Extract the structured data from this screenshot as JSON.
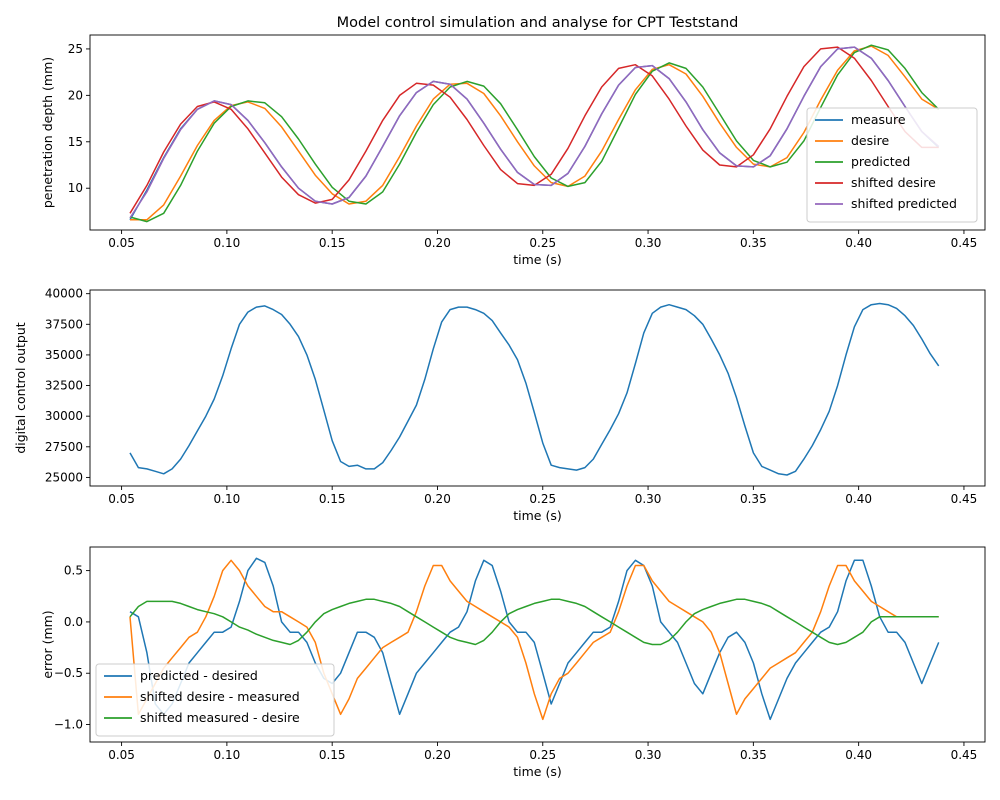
{
  "chart_data": [
    {
      "type": "line",
      "title": "Model control simulation and analyse for CPT Teststand",
      "xlabel": "time (s)",
      "ylabel": "penetration depth (mm)",
      "xlim": [
        0.035,
        0.46
      ],
      "ylim": [
        5.5,
        26.5
      ],
      "xticks": [
        0.05,
        0.1,
        0.15,
        0.2,
        0.25,
        0.3,
        0.35,
        0.4,
        0.45
      ],
      "xtick_labels": [
        "0.05",
        "0.10",
        "0.15",
        "0.20",
        "0.25",
        "0.30",
        "0.35",
        "0.40",
        "0.45"
      ],
      "yticks": [
        10,
        15,
        20,
        25
      ],
      "ytick_labels": [
        "10",
        "15",
        "20",
        "25"
      ],
      "legend_position": "lower-right",
      "x": [
        0.054,
        0.062,
        0.07,
        0.078,
        0.086,
        0.094,
        0.102,
        0.11,
        0.118,
        0.126,
        0.134,
        0.142,
        0.15,
        0.158,
        0.166,
        0.174,
        0.182,
        0.19,
        0.198,
        0.206,
        0.214,
        0.222,
        0.23,
        0.238,
        0.246,
        0.254,
        0.262,
        0.27,
        0.278,
        0.286,
        0.294,
        0.302,
        0.31,
        0.318,
        0.326,
        0.334,
        0.342,
        0.35,
        0.358,
        0.366,
        0.374,
        0.382,
        0.39,
        0.398,
        0.406,
        0.414,
        0.422,
        0.43,
        0.438
      ],
      "series": [
        {
          "name": "measure",
          "color": "#1f77b4",
          "values": [
            6.6,
            9.8,
            13.3,
            16.4,
            18.5,
            19.4,
            19.0,
            17.3,
            14.9,
            12.3,
            10.0,
            8.6,
            8.3,
            9.0,
            11.3,
            14.5,
            17.8,
            20.3,
            21.5,
            21.2,
            19.6,
            17.0,
            14.2,
            11.7,
            10.4,
            10.3,
            11.6,
            14.5,
            18.0,
            21.1,
            23.0,
            23.2,
            21.8,
            19.3,
            16.3,
            13.8,
            12.4,
            12.3,
            13.5,
            16.4,
            19.9,
            23.1,
            25.0,
            25.2,
            24.0,
            21.6,
            18.8,
            16.1,
            14.4
          ]
        },
        {
          "name": "desire",
          "color": "#ff7f0e",
          "values": [
            6.6,
            6.6,
            8.2,
            11.3,
            14.6,
            17.3,
            18.9,
            19.3,
            18.6,
            16.6,
            14.0,
            11.4,
            9.4,
            8.3,
            8.6,
            10.3,
            13.4,
            16.7,
            19.6,
            21.2,
            21.3,
            20.2,
            17.8,
            15.0,
            12.4,
            10.6,
            10.2,
            11.3,
            14.0,
            17.4,
            20.6,
            22.8,
            23.3,
            22.3,
            19.9,
            17.0,
            14.4,
            12.6,
            12.3,
            13.3,
            16.0,
            19.5,
            22.7,
            24.8,
            25.3,
            24.3,
            22.0,
            19.6,
            18.5
          ]
        },
        {
          "name": "predicted",
          "color": "#2ca02c",
          "values": [
            6.9,
            6.4,
            7.3,
            10.3,
            14.0,
            17.0,
            18.8,
            19.4,
            19.2,
            17.7,
            15.3,
            12.6,
            10.1,
            8.6,
            8.3,
            9.6,
            12.6,
            16.0,
            19.0,
            20.9,
            21.5,
            21.0,
            19.1,
            16.3,
            13.4,
            11.1,
            10.2,
            10.6,
            12.9,
            16.5,
            20.1,
            22.6,
            23.5,
            22.9,
            20.9,
            18.0,
            15.1,
            13.0,
            12.3,
            12.8,
            15.1,
            18.7,
            22.2,
            24.6,
            25.4,
            24.9,
            22.9,
            20.3,
            18.5
          ]
        },
        {
          "name": "shifted desire",
          "color": "#d62728",
          "values": [
            7.3,
            10.3,
            13.9,
            16.9,
            18.8,
            19.3,
            18.5,
            16.4,
            13.8,
            11.2,
            9.3,
            8.4,
            8.8,
            10.9,
            14.0,
            17.3,
            20.0,
            21.3,
            21.1,
            19.8,
            17.4,
            14.6,
            12.0,
            10.5,
            10.3,
            11.5,
            14.3,
            17.8,
            20.9,
            22.9,
            23.3,
            22.1,
            19.6,
            16.7,
            14.1,
            12.5,
            12.3,
            13.6,
            16.4,
            19.9,
            23.1,
            25.0,
            25.2,
            24.0,
            21.6,
            18.8,
            16.1,
            14.4,
            14.4
          ]
        },
        {
          "name": "shifted predicted",
          "color": "#9467bd",
          "values": [
            6.8,
            9.6,
            13.2,
            16.3,
            18.5,
            19.4,
            19.0,
            17.3,
            14.9,
            12.3,
            10.0,
            8.6,
            8.3,
            9.0,
            11.3,
            14.5,
            17.8,
            20.3,
            21.5,
            21.2,
            19.6,
            17.0,
            14.2,
            11.7,
            10.4,
            10.3,
            11.6,
            14.5,
            18.0,
            21.1,
            23.0,
            23.2,
            21.8,
            19.3,
            16.3,
            13.8,
            12.4,
            12.3,
            13.5,
            16.4,
            19.9,
            23.1,
            25.0,
            25.2,
            24.0,
            21.6,
            18.8,
            16.1,
            14.5
          ]
        }
      ]
    },
    {
      "type": "line",
      "title": "",
      "xlabel": "time (s)",
      "ylabel": "digital control output",
      "xlim": [
        0.035,
        0.46
      ],
      "ylim": [
        24300,
        40300
      ],
      "xticks": [
        0.05,
        0.1,
        0.15,
        0.2,
        0.25,
        0.3,
        0.35,
        0.4,
        0.45
      ],
      "xtick_labels": [
        "0.05",
        "0.10",
        "0.15",
        "0.20",
        "0.25",
        "0.30",
        "0.35",
        "0.40",
        "0.45"
      ],
      "yticks": [
        25000,
        27500,
        30000,
        32500,
        35000,
        37500,
        40000
      ],
      "ytick_labels": [
        "25000",
        "27500",
        "30000",
        "32500",
        "35000",
        "37500",
        "40000"
      ],
      "legend_position": "none",
      "x": [
        0.054,
        0.058,
        0.062,
        0.066,
        0.07,
        0.074,
        0.078,
        0.082,
        0.086,
        0.09,
        0.094,
        0.098,
        0.102,
        0.106,
        0.11,
        0.114,
        0.118,
        0.122,
        0.126,
        0.13,
        0.134,
        0.138,
        0.142,
        0.146,
        0.15,
        0.154,
        0.158,
        0.162,
        0.166,
        0.17,
        0.174,
        0.178,
        0.182,
        0.186,
        0.19,
        0.194,
        0.198,
        0.202,
        0.206,
        0.21,
        0.214,
        0.218,
        0.222,
        0.226,
        0.23,
        0.234,
        0.238,
        0.242,
        0.246,
        0.25,
        0.254,
        0.258,
        0.262,
        0.266,
        0.27,
        0.274,
        0.278,
        0.282,
        0.286,
        0.29,
        0.294,
        0.298,
        0.302,
        0.306,
        0.31,
        0.314,
        0.318,
        0.322,
        0.326,
        0.33,
        0.334,
        0.338,
        0.342,
        0.346,
        0.35,
        0.354,
        0.358,
        0.362,
        0.366,
        0.37,
        0.374,
        0.378,
        0.382,
        0.386,
        0.39,
        0.394,
        0.398,
        0.402,
        0.406,
        0.41,
        0.414,
        0.418,
        0.422,
        0.426,
        0.43,
        0.434,
        0.438
      ],
      "series": [
        {
          "name": "",
          "color": "#1f77b4",
          "values": [
            27000,
            25800,
            25700,
            25500,
            25300,
            25700,
            26500,
            27600,
            28800,
            30000,
            31400,
            33300,
            35500,
            37500,
            38500,
            38900,
            39000,
            38700,
            38300,
            37500,
            36500,
            35000,
            33000,
            30500,
            28000,
            26300,
            25900,
            26000,
            25700,
            25700,
            26200,
            27200,
            28300,
            29600,
            30900,
            33000,
            35500,
            37700,
            38700,
            38900,
            38900,
            38700,
            38400,
            37800,
            36800,
            35800,
            34600,
            32700,
            30300,
            27800,
            26000,
            25800,
            25700,
            25600,
            25800,
            26500,
            27700,
            28900,
            30200,
            31900,
            34300,
            36800,
            38400,
            38900,
            39100,
            38900,
            38700,
            38200,
            37500,
            36300,
            35000,
            33500,
            31500,
            29200,
            27000,
            25900,
            25600,
            25300,
            25200,
            25500,
            26500,
            27600,
            28900,
            30400,
            32500,
            35000,
            37300,
            38700,
            39100,
            39200,
            39100,
            38800,
            38200,
            37400,
            36300,
            35100,
            34100
          ]
        }
      ]
    },
    {
      "type": "line",
      "title": "",
      "xlabel": "time (s)",
      "ylabel": "error (mm)",
      "xlim": [
        0.035,
        0.46
      ],
      "ylim": [
        -1.17,
        0.73
      ],
      "xticks": [
        0.05,
        0.1,
        0.15,
        0.2,
        0.25,
        0.3,
        0.35,
        0.4,
        0.45
      ],
      "xtick_labels": [
        "0.05",
        "0.10",
        "0.15",
        "0.20",
        "0.25",
        "0.30",
        "0.35",
        "0.40",
        "0.45"
      ],
      "yticks": [
        -1.0,
        -0.5,
        0.0,
        0.5
      ],
      "ytick_labels": [
        "−1.0",
        "−0.5",
        "0.0",
        "0.5"
      ],
      "legend_position": "lower-left",
      "x": [
        0.054,
        0.058,
        0.062,
        0.066,
        0.07,
        0.074,
        0.078,
        0.082,
        0.086,
        0.09,
        0.094,
        0.098,
        0.102,
        0.106,
        0.11,
        0.114,
        0.118,
        0.122,
        0.126,
        0.13,
        0.134,
        0.138,
        0.142,
        0.146,
        0.15,
        0.154,
        0.158,
        0.162,
        0.166,
        0.17,
        0.174,
        0.178,
        0.182,
        0.186,
        0.19,
        0.194,
        0.198,
        0.202,
        0.206,
        0.21,
        0.214,
        0.218,
        0.222,
        0.226,
        0.23,
        0.234,
        0.238,
        0.242,
        0.246,
        0.25,
        0.254,
        0.258,
        0.262,
        0.266,
        0.27,
        0.274,
        0.278,
        0.282,
        0.286,
        0.29,
        0.294,
        0.298,
        0.302,
        0.306,
        0.31,
        0.314,
        0.318,
        0.322,
        0.326,
        0.33,
        0.334,
        0.338,
        0.342,
        0.346,
        0.35,
        0.354,
        0.358,
        0.362,
        0.366,
        0.37,
        0.374,
        0.378,
        0.382,
        0.386,
        0.39,
        0.394,
        0.398,
        0.402,
        0.406,
        0.41,
        0.414,
        0.418,
        0.422,
        0.426,
        0.43,
        0.434,
        0.438
      ],
      "series": [
        {
          "name": "predicted - desired",
          "color": "#1f77b4",
          "values": [
            0.1,
            0.05,
            -0.3,
            -0.8,
            -0.9,
            -0.8,
            -0.6,
            -0.4,
            -0.3,
            -0.2,
            -0.1,
            -0.1,
            -0.05,
            0.2,
            0.5,
            0.62,
            0.58,
            0.35,
            0.0,
            -0.1,
            -0.1,
            -0.2,
            -0.4,
            -0.55,
            -0.6,
            -0.5,
            -0.3,
            -0.1,
            -0.1,
            -0.15,
            -0.3,
            -0.6,
            -0.9,
            -0.7,
            -0.5,
            -0.4,
            -0.3,
            -0.2,
            -0.1,
            -0.05,
            0.1,
            0.4,
            0.6,
            0.55,
            0.3,
            0.0,
            -0.1,
            -0.1,
            -0.2,
            -0.5,
            -0.8,
            -0.6,
            -0.4,
            -0.3,
            -0.2,
            -0.1,
            -0.1,
            -0.05,
            0.2,
            0.5,
            0.6,
            0.55,
            0.35,
            0.0,
            -0.1,
            -0.2,
            -0.4,
            -0.6,
            -0.7,
            -0.5,
            -0.3,
            -0.15,
            -0.1,
            -0.2,
            -0.4,
            -0.7,
            -0.95,
            -0.75,
            -0.55,
            -0.4,
            -0.3,
            -0.2,
            -0.1,
            -0.05,
            0.1,
            0.4,
            0.6,
            0.6,
            0.35,
            0.05,
            -0.1,
            -0.1,
            -0.2,
            -0.4,
            -0.6,
            -0.4,
            -0.2
          ]
        },
        {
          "name": "shifted desire - measured",
          "color": "#ff7f0e",
          "values": [
            0.05,
            -0.9,
            -0.75,
            -0.6,
            -0.45,
            -0.35,
            -0.25,
            -0.15,
            -0.1,
            0.05,
            0.25,
            0.5,
            0.6,
            0.5,
            0.35,
            0.25,
            0.15,
            0.1,
            0.1,
            0.05,
            0.0,
            -0.05,
            -0.2,
            -0.5,
            -0.7,
            -0.9,
            -0.75,
            -0.55,
            -0.45,
            -0.35,
            -0.25,
            -0.2,
            -0.15,
            -0.1,
            0.1,
            0.35,
            0.55,
            0.55,
            0.4,
            0.3,
            0.2,
            0.15,
            0.1,
            0.05,
            0.0,
            -0.05,
            -0.15,
            -0.4,
            -0.7,
            -0.95,
            -0.7,
            -0.55,
            -0.5,
            -0.4,
            -0.3,
            -0.2,
            -0.15,
            -0.1,
            0.1,
            0.35,
            0.55,
            0.55,
            0.4,
            0.3,
            0.2,
            0.15,
            0.1,
            0.05,
            0.0,
            -0.1,
            -0.3,
            -0.6,
            -0.9,
            -0.75,
            -0.65,
            -0.55,
            -0.45,
            -0.4,
            -0.35,
            -0.3,
            -0.2,
            -0.1,
            0.1,
            0.35,
            0.55,
            0.55,
            0.4,
            0.3,
            0.2,
            0.15,
            0.1,
            0.05,
            0.05,
            0.05,
            0.05,
            0.05,
            0.05
          ]
        },
        {
          "name": "shifted measured  -  desire",
          "color": "#2ca02c",
          "values": [
            0.05,
            0.15,
            0.2,
            0.2,
            0.2,
            0.2,
            0.18,
            0.15,
            0.12,
            0.1,
            0.08,
            0.05,
            0.0,
            -0.05,
            -0.08,
            -0.12,
            -0.15,
            -0.18,
            -0.2,
            -0.22,
            -0.18,
            -0.1,
            0.0,
            0.08,
            0.12,
            0.15,
            0.18,
            0.2,
            0.22,
            0.22,
            0.2,
            0.18,
            0.15,
            0.1,
            0.05,
            0.0,
            -0.05,
            -0.1,
            -0.15,
            -0.18,
            -0.2,
            -0.22,
            -0.18,
            -0.1,
            0.0,
            0.08,
            0.12,
            0.15,
            0.18,
            0.2,
            0.22,
            0.22,
            0.2,
            0.18,
            0.15,
            0.1,
            0.05,
            0.0,
            -0.05,
            -0.1,
            -0.15,
            -0.2,
            -0.22,
            -0.22,
            -0.18,
            -0.1,
            0.0,
            0.08,
            0.12,
            0.15,
            0.18,
            0.2,
            0.22,
            0.22,
            0.2,
            0.18,
            0.15,
            0.1,
            0.05,
            0.0,
            -0.05,
            -0.1,
            -0.15,
            -0.2,
            -0.22,
            -0.2,
            -0.15,
            -0.1,
            0.0,
            0.05,
            0.05,
            0.05,
            0.05,
            0.05,
            0.05,
            0.05,
            0.05
          ]
        }
      ]
    }
  ]
}
